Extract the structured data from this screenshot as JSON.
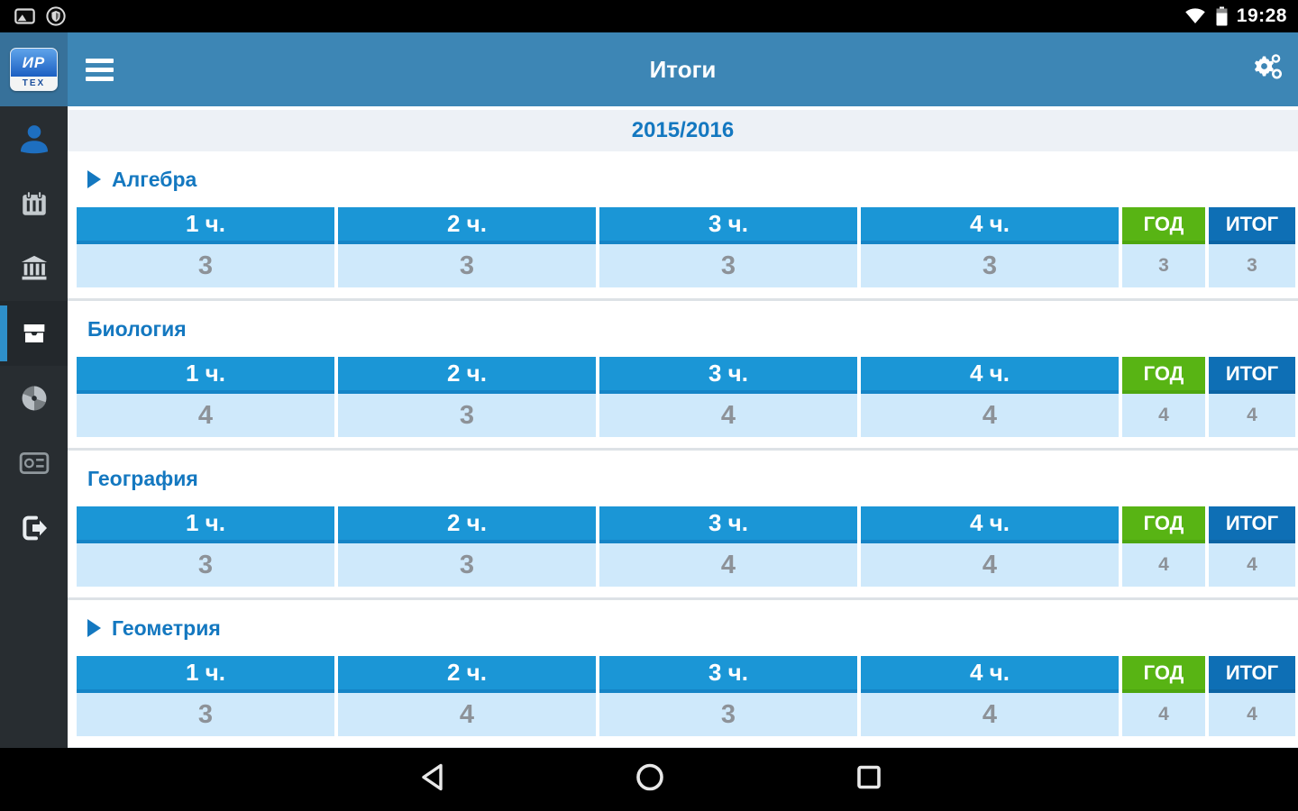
{
  "status_bar": {
    "time": "19:28",
    "left_icons": [
      "screenshot-icon",
      "shield-icon"
    ],
    "right_icons": [
      "wifi-icon",
      "battery-icon"
    ]
  },
  "app_header": {
    "title": "Итоги",
    "logo_top": "ИР",
    "logo_bottom": "ТЕХ",
    "icons": [
      "menu-icon",
      "settings-gears-icon"
    ]
  },
  "sidebar": {
    "items": [
      {
        "name": "profile",
        "icon": "user-icon",
        "active": false
      },
      {
        "name": "schedule",
        "icon": "calendar-icon",
        "active": false
      },
      {
        "name": "school",
        "icon": "bank-icon",
        "active": false
      },
      {
        "name": "results",
        "icon": "archive-box-icon",
        "active": true
      },
      {
        "name": "reports",
        "icon": "pie-chart-icon",
        "active": false
      },
      {
        "name": "card",
        "icon": "id-card-icon",
        "active": false
      },
      {
        "name": "logout",
        "icon": "logout-icon",
        "active": false
      }
    ]
  },
  "main": {
    "school_year": "2015/2016",
    "table_columns": [
      "1 ч.",
      "2 ч.",
      "3 ч.",
      "4 ч."
    ],
    "year_column": "ГОД",
    "total_column": "ИТОГ",
    "subjects": [
      {
        "name": "Алгебра",
        "expandable": true,
        "grades": [
          "3",
          "3",
          "3",
          "3"
        ],
        "year_grade": "3",
        "total_grade": "3"
      },
      {
        "name": "Биология",
        "expandable": false,
        "grades": [
          "4",
          "3",
          "4",
          "4"
        ],
        "year_grade": "4",
        "total_grade": "4"
      },
      {
        "name": "География",
        "expandable": false,
        "grades": [
          "3",
          "3",
          "4",
          "4"
        ],
        "year_grade": "4",
        "total_grade": "4"
      },
      {
        "name": "Геометрия",
        "expandable": true,
        "grades": [
          "3",
          "4",
          "3",
          "4"
        ],
        "year_grade": "4",
        "total_grade": "4"
      }
    ]
  },
  "navigation_bar": {
    "icons": [
      "back-icon",
      "home-icon",
      "recents-icon"
    ]
  },
  "colors": {
    "header_blue": "#3d86b5",
    "logo_well_blue": "#37719a",
    "sidebar_dark": "#282d31",
    "active_marker_blue": "#2e8fc9",
    "table_header_blue": "#1b96d6",
    "cell_light_blue": "#cfe9fb",
    "grade_text_gray": "#8d9298",
    "year_green": "#58b414",
    "total_dark_blue": "#0e6fb5",
    "accent_text_blue": "#1478c0",
    "year_band_gray": "#edf1f6"
  }
}
